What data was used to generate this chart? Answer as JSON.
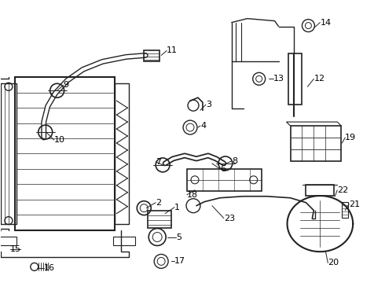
{
  "bg_color": "#ffffff",
  "line_color": "#222222",
  "label_color": "#000000",
  "figsize": [
    4.9,
    3.6
  ],
  "dpi": 100
}
